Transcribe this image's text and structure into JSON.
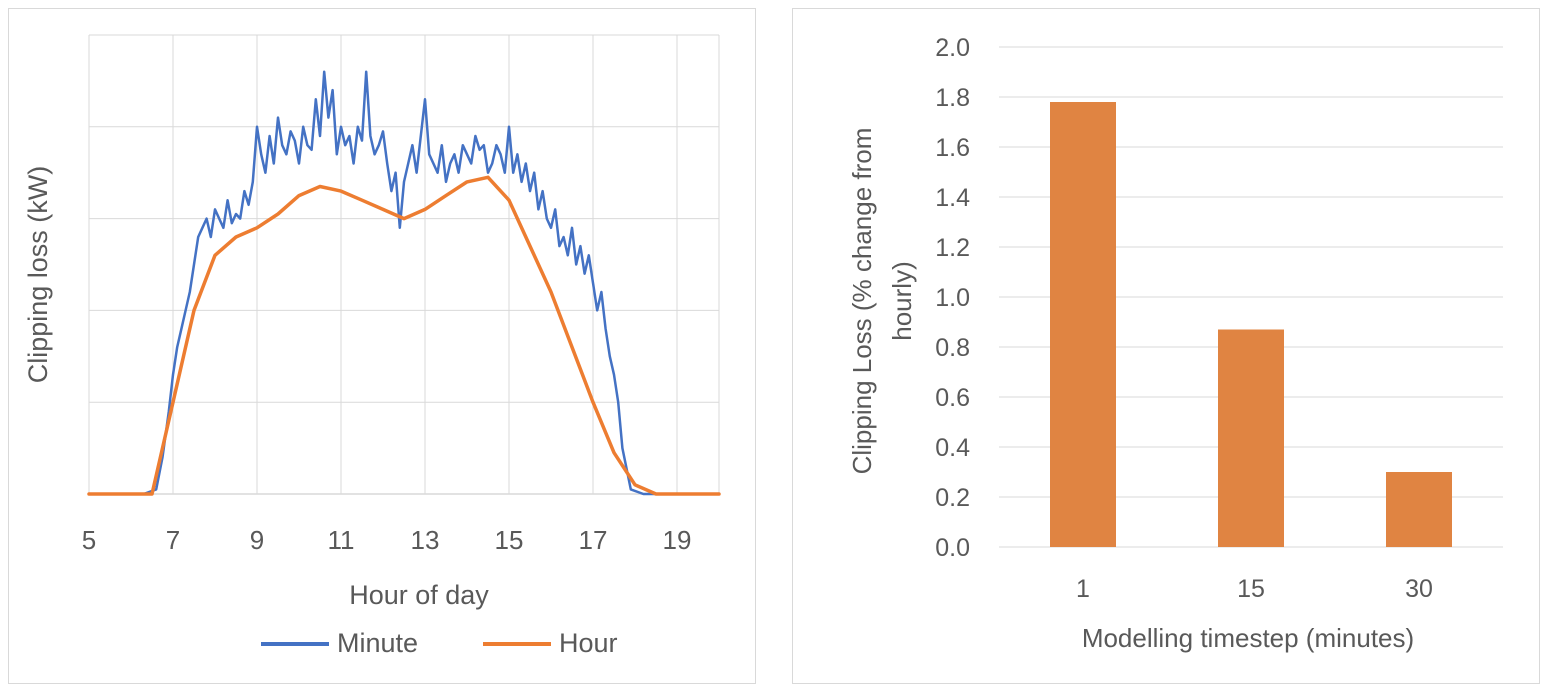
{
  "chart_data": [
    {
      "type": "line",
      "title": "",
      "xlabel": "Hour of day",
      "ylabel": "Clipping loss (kW)",
      "xlim": [
        5,
        20
      ],
      "ylim": [
        0,
        5
      ],
      "x_ticks": [
        "5",
        "7",
        "9",
        "11",
        "13",
        "15",
        "17",
        "19"
      ],
      "y_gridlines": 5,
      "grid": true,
      "legend": "bottom",
      "series": [
        {
          "name": "Minute",
          "color": "#4472C4",
          "x": [
            5.0,
            6.3,
            6.6,
            6.75,
            6.9,
            7.0,
            7.1,
            7.2,
            7.3,
            7.4,
            7.5,
            7.6,
            7.7,
            7.8,
            7.9,
            8.0,
            8.1,
            8.2,
            8.3,
            8.4,
            8.5,
            8.6,
            8.7,
            8.8,
            8.9,
            9.0,
            9.1,
            9.2,
            9.3,
            9.4,
            9.5,
            9.6,
            9.7,
            9.8,
            9.9,
            10.0,
            10.1,
            10.2,
            10.3,
            10.4,
            10.5,
            10.6,
            10.7,
            10.8,
            10.9,
            11.0,
            11.1,
            11.2,
            11.3,
            11.4,
            11.5,
            11.6,
            11.7,
            11.8,
            11.9,
            12.0,
            12.1,
            12.2,
            12.3,
            12.4,
            12.5,
            12.6,
            12.7,
            12.8,
            12.9,
            13.0,
            13.1,
            13.2,
            13.3,
            13.4,
            13.5,
            13.6,
            13.7,
            13.8,
            13.9,
            14.0,
            14.1,
            14.2,
            14.3,
            14.4,
            14.5,
            14.6,
            14.7,
            14.8,
            14.9,
            15.0,
            15.1,
            15.2,
            15.3,
            15.4,
            15.5,
            15.6,
            15.7,
            15.8,
            15.9,
            16.0,
            16.1,
            16.2,
            16.3,
            16.4,
            16.5,
            16.6,
            16.7,
            16.8,
            16.9,
            17.0,
            17.1,
            17.2,
            17.3,
            17.4,
            17.5,
            17.6,
            17.7,
            17.9,
            18.2,
            20.0
          ],
          "y": [
            0.0,
            0.0,
            0.05,
            0.4,
            0.9,
            1.3,
            1.6,
            1.8,
            2.0,
            2.2,
            2.5,
            2.8,
            2.9,
            3.0,
            2.8,
            3.1,
            3.0,
            2.9,
            3.2,
            2.95,
            3.05,
            3.0,
            3.3,
            3.15,
            3.4,
            4.0,
            3.7,
            3.5,
            3.9,
            3.6,
            4.1,
            3.8,
            3.7,
            3.95,
            3.85,
            3.6,
            4.0,
            3.8,
            3.75,
            4.3,
            3.9,
            4.6,
            4.1,
            4.4,
            3.7,
            4.0,
            3.8,
            3.9,
            3.6,
            4.0,
            3.85,
            4.6,
            3.9,
            3.7,
            3.8,
            3.95,
            3.6,
            3.3,
            3.5,
            2.9,
            3.4,
            3.6,
            3.8,
            3.5,
            3.9,
            4.3,
            3.7,
            3.6,
            3.5,
            3.8,
            3.4,
            3.6,
            3.7,
            3.5,
            3.8,
            3.7,
            3.6,
            3.9,
            3.75,
            3.8,
            3.5,
            3.6,
            3.8,
            3.7,
            3.5,
            4.0,
            3.5,
            3.7,
            3.4,
            3.6,
            3.3,
            3.5,
            3.1,
            3.3,
            3.0,
            2.9,
            3.1,
            2.7,
            2.8,
            2.6,
            2.9,
            2.5,
            2.7,
            2.4,
            2.6,
            2.3,
            2.0,
            2.2,
            1.8,
            1.5,
            1.3,
            1.0,
            0.5,
            0.05,
            0.0,
            0.0
          ]
        },
        {
          "name": "Hour",
          "color": "#ED7D31",
          "x": [
            5.0,
            6.5,
            7.0,
            7.5,
            8.0,
            8.5,
            9.0,
            9.5,
            10.0,
            10.5,
            11.0,
            11.5,
            12.0,
            12.5,
            13.0,
            13.5,
            14.0,
            14.5,
            15.0,
            15.5,
            16.0,
            16.5,
            17.0,
            17.5,
            18.0,
            18.5,
            20.0
          ],
          "y": [
            0.0,
            0.0,
            1.0,
            2.0,
            2.6,
            2.8,
            2.9,
            3.05,
            3.25,
            3.35,
            3.3,
            3.2,
            3.1,
            3.0,
            3.1,
            3.25,
            3.4,
            3.45,
            3.2,
            2.7,
            2.2,
            1.6,
            1.0,
            0.45,
            0.1,
            0.0,
            0.0
          ]
        }
      ]
    },
    {
      "type": "bar",
      "title": "",
      "xlabel": "Modelling timestep (minutes)",
      "ylabel": "Clipping Loss (% change from hourly)",
      "categories": [
        "1",
        "15",
        "30"
      ],
      "values": [
        1.78,
        0.87,
        0.3
      ],
      "ylim": [
        0,
        2.0
      ],
      "y_ticks": [
        "0.0",
        "0.2",
        "0.4",
        "0.6",
        "0.8",
        "1.0",
        "1.2",
        "1.4",
        "1.6",
        "1.8",
        "2.0"
      ],
      "grid": true,
      "bar_color": "#E08442"
    }
  ]
}
